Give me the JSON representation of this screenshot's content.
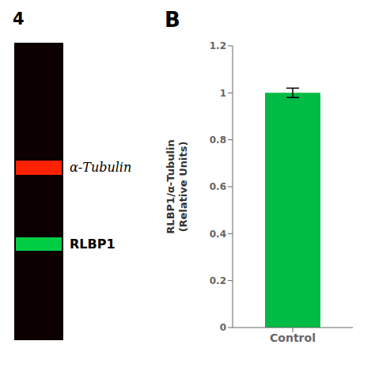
{
  "chart_data": {
    "type": "bar",
    "categories": [
      "Control"
    ],
    "values": [
      1.0
    ],
    "errors": [
      0.02
    ],
    "color": "#00bb44",
    "ylabel": "RLBP1/α-Tubulin\n(Relative Units)",
    "ylim": [
      0,
      1.2
    ],
    "yticks": [
      0,
      0.2,
      0.4,
      0.6,
      0.8,
      1,
      1.2
    ],
    "grid": false,
    "annotations": [
      {
        "text": "4"
      },
      {
        "text": "B"
      },
      {
        "text": "α-Tubulin",
        "color": "#ff2200"
      },
      {
        "text": "RLBP1",
        "color": "#00cc44"
      }
    ]
  }
}
